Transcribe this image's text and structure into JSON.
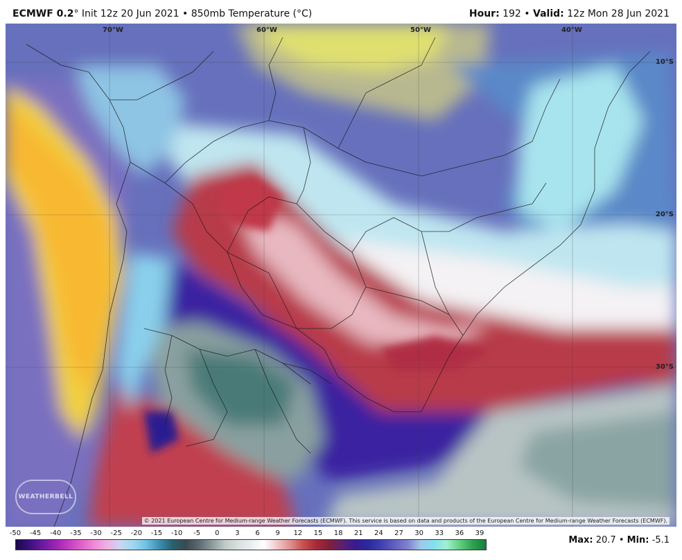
{
  "header": {
    "model": "ECMWF 0.2",
    "init": "° Init 12z 20 Jun 2021 • 850mb Temperature (°C)",
    "hour_label": "Hour:",
    "hour_value": " 192 • ",
    "valid_label": "Valid:",
    "valid_value": " 12z Mon 28 Jun 2021"
  },
  "map": {
    "longitude_labels": [
      "70°W",
      "60°W",
      "50°W",
      "40°W"
    ],
    "latitude_labels": [
      "10°S",
      "20°S",
      "30°S"
    ],
    "credit": "© 2021 European Centre for Medium-range Weather Forecasts (ECMWF). This service is based on data and products of the European Centre for Medium-range Weather Forecasts (ECMWF).",
    "logo_text": "WEATHERBELL"
  },
  "colorbar": {
    "labels": [
      "-50",
      "-45",
      "-40",
      "-35",
      "-30",
      "-25",
      "-20",
      "-15",
      "-10",
      "-5",
      "0",
      "3",
      "6",
      "9",
      "12",
      "15",
      "18",
      "21",
      "24",
      "27",
      "30",
      "33",
      "36",
      "39"
    ],
    "colors": [
      "#1a0a4a",
      "#3a0f7a",
      "#6a1aa0",
      "#9a24b4",
      "#c23cc0",
      "#e060c8",
      "#f08ad8",
      "#f0b0e4",
      "#c9d6f0",
      "#9ed8f0",
      "#6ec0e0",
      "#3c8fb0",
      "#2a6070",
      "#3a4a50",
      "#5a6a70",
      "#8a9a9a",
      "#c0c8c8",
      "#d8e0e0",
      "#e8eef0",
      "#ffffff",
      "#f0c8c8",
      "#e09090",
      "#c85050",
      "#a82a3a",
      "#80203a",
      "#5a2070",
      "#3a1a90",
      "#2a2aa0",
      "#4040b0",
      "#6060c0",
      "#8080d0",
      "#a0c8e8",
      "#80e0f0",
      "#a0f0d0",
      "#60d080",
      "#30a050",
      "#108040"
    ]
  },
  "stats": {
    "max_label": "Max:",
    "max_value": " 20.7 • ",
    "min_label": "Min:",
    "min_value": " -5.1"
  }
}
